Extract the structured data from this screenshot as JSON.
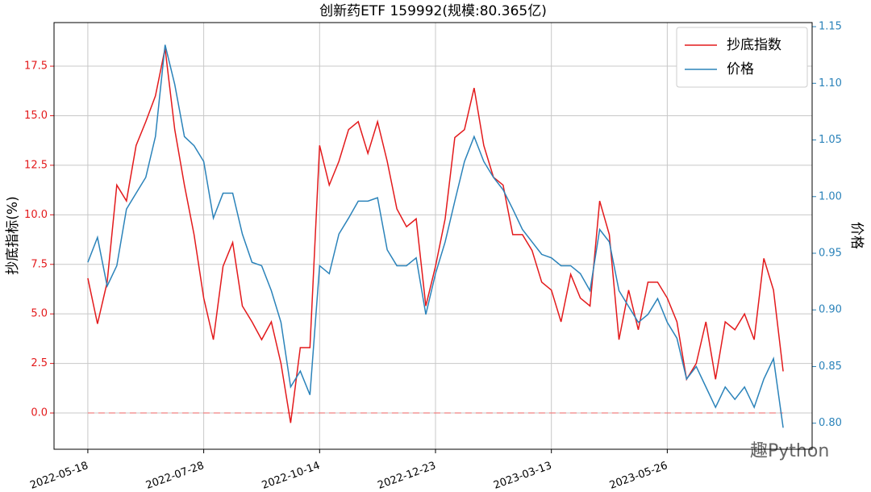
{
  "chart_data": {
    "type": "line",
    "title": "创新药ETF 159992(规模:80.365亿)",
    "ylabel": "抄底指标(%)",
    "y2label": "价格",
    "watermark": "趣Python",
    "x": [
      0,
      4,
      8,
      12,
      16,
      20,
      24,
      28,
      32,
      36,
      40,
      44,
      48,
      52,
      56,
      60,
      64,
      68,
      72,
      76,
      80,
      84,
      88,
      92,
      96,
      100,
      104,
      108,
      112,
      116,
      120,
      124,
      128,
      132,
      136,
      140,
      144,
      148,
      152,
      156,
      160,
      164,
      168,
      172,
      176,
      180,
      184,
      188,
      192,
      196,
      200,
      204,
      208,
      212,
      216,
      220,
      224,
      228,
      232,
      236,
      240,
      244,
      248,
      252,
      256,
      260,
      264,
      268,
      272,
      276,
      280,
      284,
      288
    ],
    "xlim": [
      -14,
      300
    ],
    "xticks": [
      {
        "value": 0,
        "label": "2022-05-18"
      },
      {
        "value": 48,
        "label": "2022-07-28"
      },
      {
        "value": 96,
        "label": "2022-10-14"
      },
      {
        "value": 144,
        "label": "2022-12-23"
      },
      {
        "value": 192,
        "label": "2023-03-13"
      },
      {
        "value": 240,
        "label": "2023-05-26"
      }
    ],
    "ylim": [
      -1.83,
      19.7
    ],
    "yticks": [
      {
        "value": 0,
        "label": "0.0"
      },
      2.5,
      {
        "value": 5,
        "label": "5.0"
      },
      7.5,
      {
        "value": 10,
        "label": "10.0"
      },
      12.5,
      {
        "value": 15,
        "label": "15.0"
      },
      17.5
    ],
    "y2lim": [
      0.777,
      1.1536
    ],
    "y2ticks": [
      {
        "value": 0.8,
        "label": "0.80"
      },
      0.85,
      {
        "value": 0.9,
        "label": "0.90"
      },
      0.95,
      {
        "value": 1.0,
        "label": "1.00"
      },
      1.05,
      {
        "value": 1.1,
        "label": "1.10"
      },
      1.15
    ],
    "hline": {
      "value": 0,
      "color": "#f08080"
    },
    "grid": true,
    "legend": "upper right",
    "series": [
      {
        "name": "抄底指数",
        "color": "#e31a1c",
        "values": [
          6.8,
          4.5,
          6.6,
          11.5,
          10.7,
          13.5,
          14.7,
          16,
          18.4,
          14.3,
          11.5,
          9,
          5.8,
          3.7,
          7.4,
          8.6,
          5.4,
          4.6,
          3.7,
          4.6,
          2.5,
          -0.5,
          3.3,
          3.3,
          13.5,
          11.5,
          12.7,
          14.3,
          14.7,
          13.1,
          14.7,
          12.7,
          10.3,
          9.4,
          9.8,
          5.4,
          7.4,
          9.8,
          13.9,
          14.3,
          16.4,
          13.5,
          11.9,
          11.5,
          9,
          9,
          8.2,
          6.6,
          6.2,
          4.6,
          7,
          5.8,
          5.4,
          10.7,
          9,
          3.7,
          6.2,
          4.2,
          6.6,
          6.6,
          5.8,
          4.6,
          1.7,
          2.5,
          4.6,
          1.7,
          4.6,
          4.2,
          5,
          3.7,
          7.8,
          6.2,
          2.1
        ]
      },
      {
        "name": "价格",
        "color": "#2b83ba",
        "axis": "y2",
        "values": [
          0.942,
          0.964,
          0.921,
          0.939,
          0.989,
          1.003,
          1.017,
          1.053,
          1.134,
          1.099,
          1.053,
          1.045,
          1.031,
          0.981,
          1.003,
          1.003,
          0.967,
          0.942,
          0.939,
          0.917,
          0.889,
          0.832,
          0.846,
          0.825,
          0.939,
          0.932,
          0.967,
          0.981,
          0.996,
          0.996,
          0.999,
          0.953,
          0.939,
          0.939,
          0.946,
          0.896,
          0.932,
          0.96,
          0.996,
          1.031,
          1.053,
          1.031,
          1.017,
          1.006,
          0.989,
          0.971,
          0.96,
          0.949,
          0.946,
          0.939,
          0.939,
          0.932,
          0.917,
          0.971,
          0.96,
          0.917,
          0.903,
          0.889,
          0.896,
          0.91,
          0.889,
          0.875,
          0.839,
          0.85,
          0.832,
          0.814,
          0.832,
          0.821,
          0.832,
          0.814,
          0.839,
          0.857,
          0.796
        ]
      }
    ]
  }
}
